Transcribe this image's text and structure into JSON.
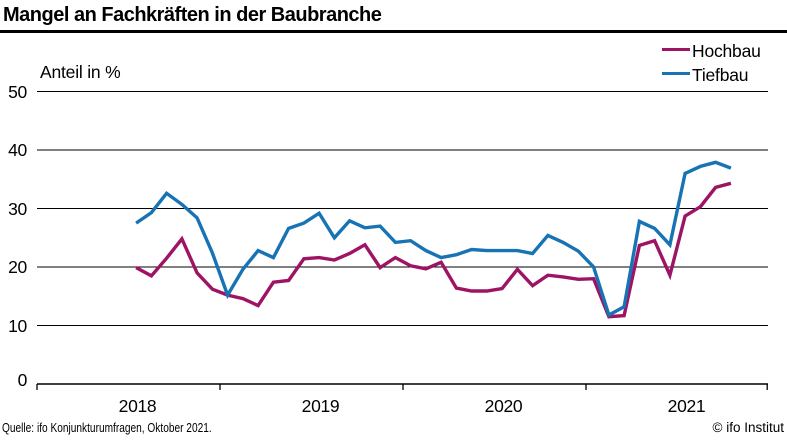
{
  "title": "Mangel an Fachkräften in der Baubranche",
  "legend": [
    {
      "label": "Hochbau",
      "color": "#9e1464"
    },
    {
      "label": "Tiefbau",
      "color": "#1773b4"
    }
  ],
  "footer": {
    "source": "Quelle: ifo Konjunkturumfragen, Oktober 2021.",
    "copyright": "© ifo Institut"
  },
  "colors": {
    "hochbau": "#9e1464",
    "tiefbau": "#1773b4",
    "axis": "#000000",
    "background": "#ffffff"
  },
  "chart_data": {
    "type": "line",
    "title": "Mangel an Fachkräften in der Baubranche",
    "ylabel": "Anteil in %",
    "ylim": [
      0,
      55
    ],
    "y_ticks": [
      0,
      10,
      20,
      30,
      40,
      50
    ],
    "grid": true,
    "legend_position": "top-right",
    "x_unit": "month",
    "x_range": [
      "2018-07",
      "2021-10"
    ],
    "x_year_labels": [
      "2018",
      "2019",
      "2020",
      "2021"
    ],
    "months": [
      "2018-07",
      "2018-08",
      "2018-09",
      "2018-10",
      "2018-11",
      "2018-12",
      "2019-01",
      "2019-02",
      "2019-03",
      "2019-04",
      "2019-05",
      "2019-06",
      "2019-07",
      "2019-08",
      "2019-09",
      "2019-10",
      "2019-11",
      "2019-12",
      "2020-01",
      "2020-02",
      "2020-03",
      "2020-04",
      "2020-05",
      "2020-06",
      "2020-07",
      "2020-08",
      "2020-09",
      "2020-10",
      "2020-11",
      "2020-12",
      "2021-01",
      "2021-02",
      "2021-03",
      "2021-04",
      "2021-05",
      "2021-06",
      "2021-07",
      "2021-08",
      "2021-09",
      "2021-10"
    ],
    "series": [
      {
        "name": "Hochbau",
        "color": "#9e1464",
        "values": [
          19.9,
          18.5,
          21.5,
          24.8,
          19.0,
          16.2,
          15.2,
          14.6,
          13.4,
          17.4,
          17.7,
          21.4,
          21.6,
          21.2,
          22.3,
          23.8,
          19.9,
          21.6,
          20.2,
          19.7,
          20.8,
          16.4,
          15.9,
          15.9,
          16.3,
          19.6,
          16.8,
          18.6,
          18.3,
          17.9,
          18.0,
          11.5,
          11.7,
          23.7,
          24.5,
          18.6,
          28.7,
          30.3,
          33.6,
          34.3
        ]
      },
      {
        "name": "Tiefbau",
        "color": "#1773b4",
        "values": [
          27.5,
          29.3,
          32.6,
          30.7,
          28.4,
          22.4,
          15.2,
          19.6,
          22.8,
          21.6,
          26.6,
          27.5,
          29.2,
          25.0,
          27.9,
          26.7,
          27.0,
          24.2,
          24.5,
          22.8,
          21.6,
          22.1,
          23.0,
          22.8,
          22.8,
          22.8,
          22.3,
          25.4,
          24.2,
          22.7,
          20.0,
          11.8,
          13.2,
          27.8,
          26.6,
          23.8,
          36.0,
          37.2,
          37.9,
          36.9
        ]
      }
    ]
  }
}
